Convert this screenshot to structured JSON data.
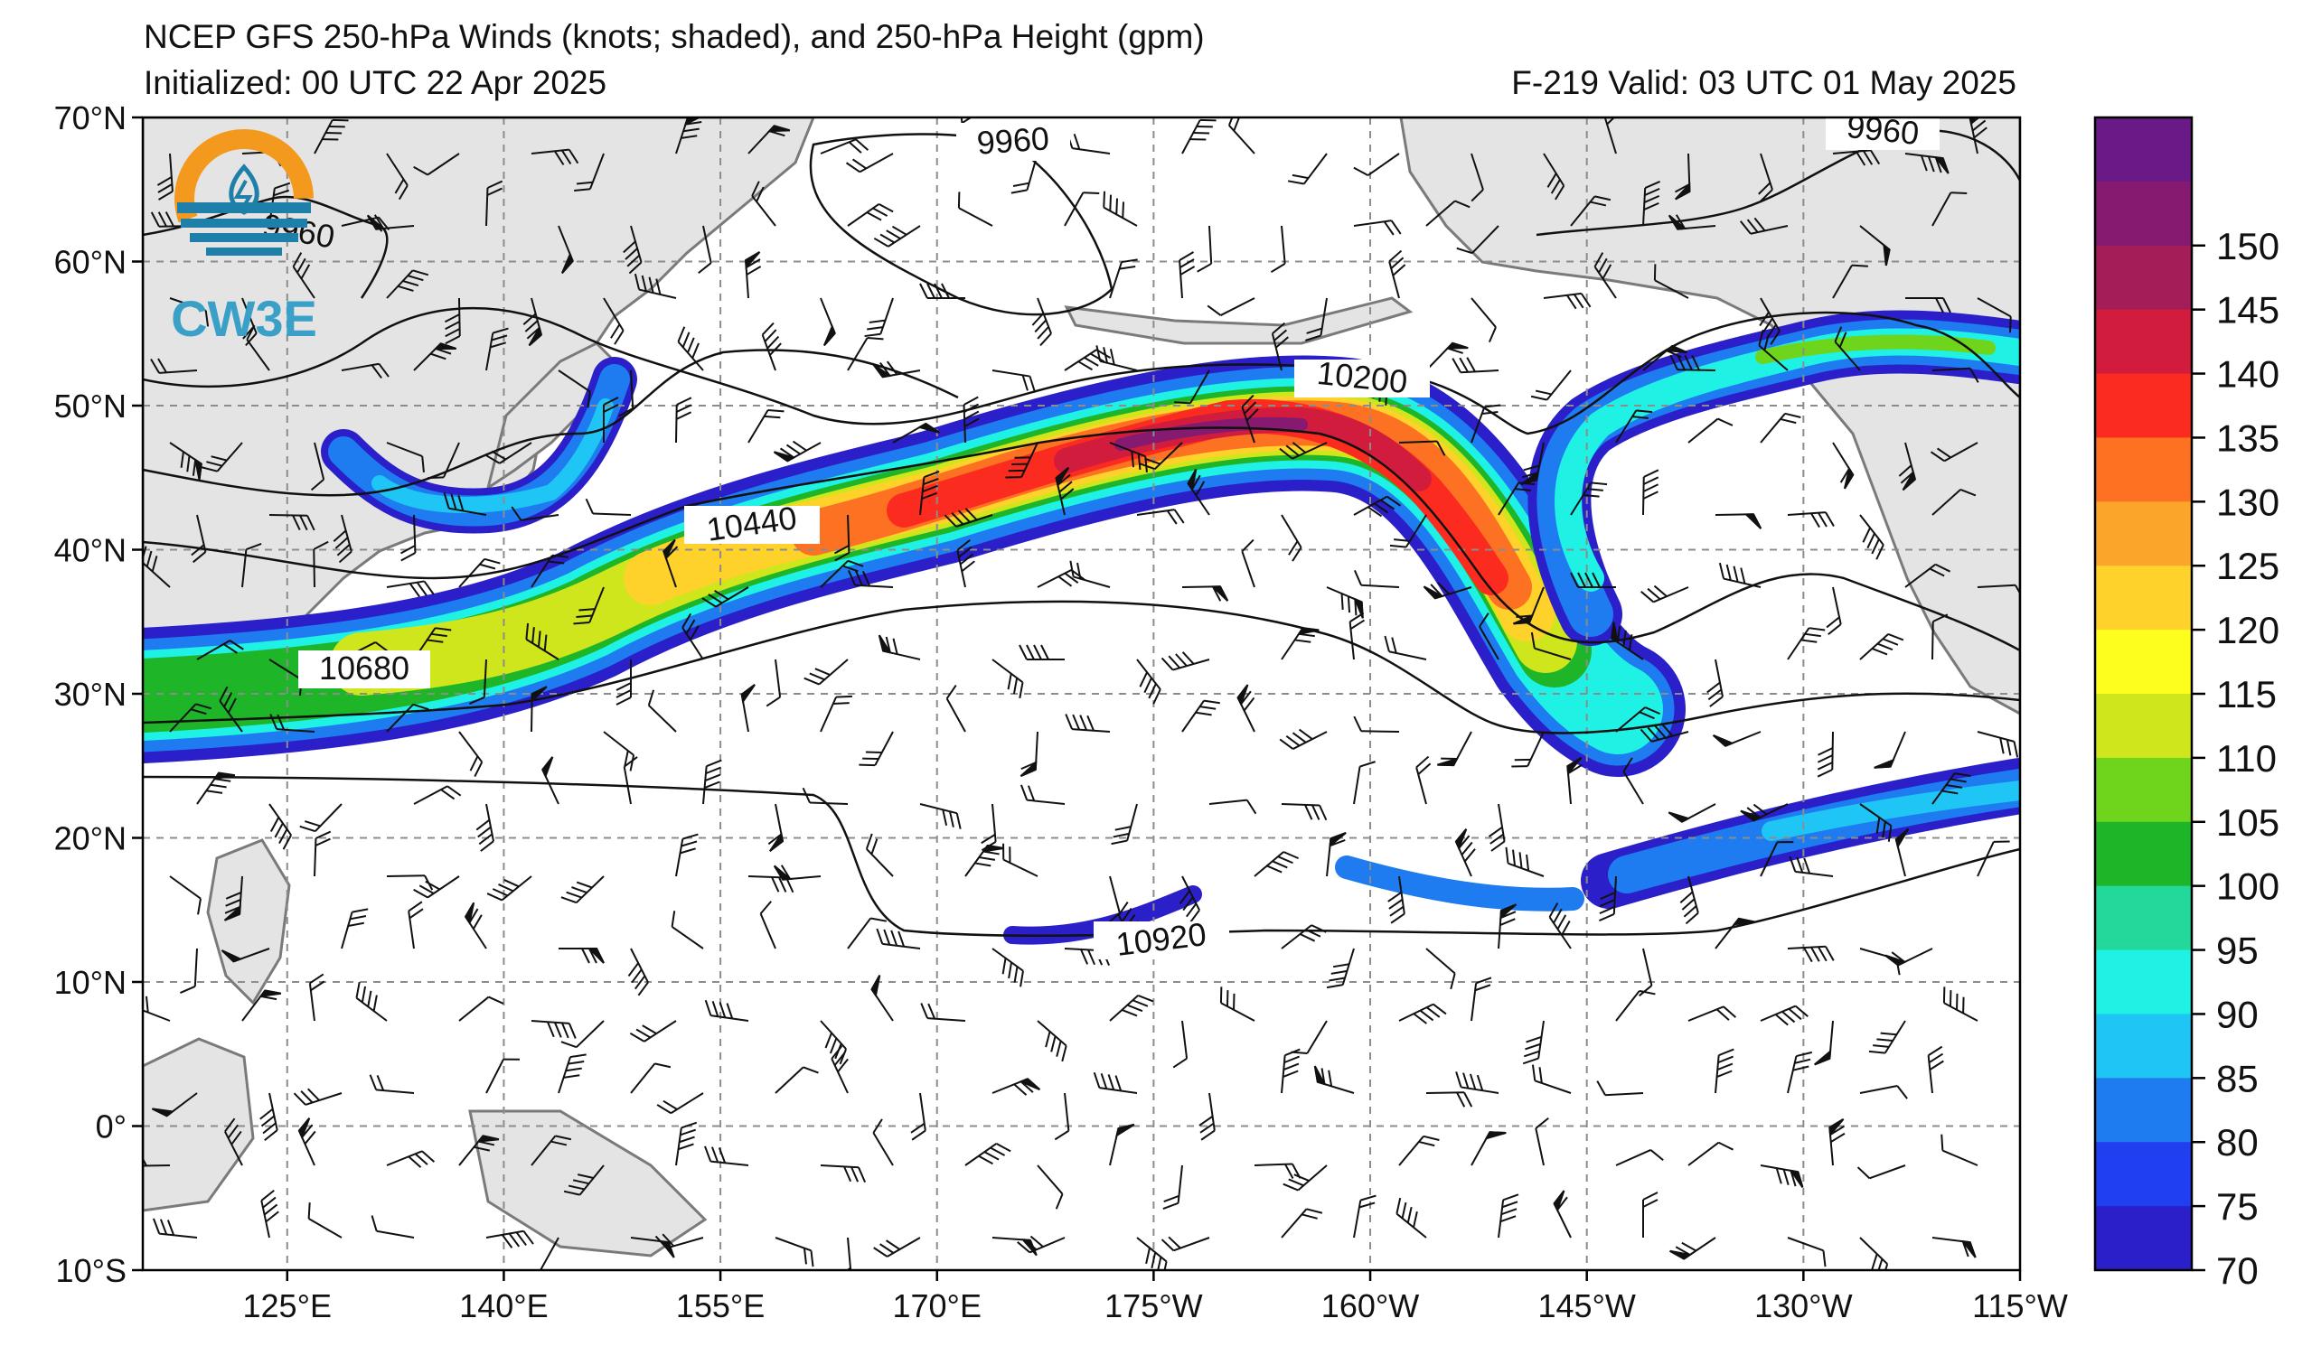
{
  "header": {
    "title": "NCEP GFS 250-hPa Winds (knots; shaded), and 250-hPa Height (gpm)",
    "initialized": "Initialized: 00 UTC 22 Apr 2025",
    "valid": "F-219  Valid: 03 UTC 01 May 2025"
  },
  "logo": {
    "text": "CW3E",
    "colors": {
      "ring": "#f39a1e",
      "base": "#1e7fa8"
    }
  },
  "map": {
    "lat_ticks": [
      "70°N",
      "60°N",
      "50°N",
      "40°N",
      "30°N",
      "20°N",
      "10°N",
      "0°",
      "10°S"
    ],
    "lon_ticks": [
      "125°E",
      "140°E",
      "155°E",
      "170°E",
      "175°W",
      "160°W",
      "145°W",
      "130°W",
      "115°W"
    ],
    "extent": {
      "lon": [
        115,
        245
      ],
      "lat": [
        -10,
        70
      ]
    },
    "land_color": "#e4e4e4",
    "contour_labels": [
      "9960",
      "9960",
      "10200",
      "10440",
      "10680",
      "10920",
      "9960"
    ]
  },
  "colorbar": {
    "ticks": [
      "70",
      "75",
      "80",
      "85",
      "90",
      "95",
      "100",
      "105",
      "110",
      "115",
      "120",
      "125",
      "130",
      "135",
      "140",
      "145",
      "150"
    ],
    "colors": [
      "#2a1fc9",
      "#1f3ff0",
      "#1e7cf0",
      "#1fc6f5",
      "#1ff2e4",
      "#23d89b",
      "#1fb529",
      "#6fd41c",
      "#cfe51c",
      "#fefe1d",
      "#fed22a",
      "#fca52b",
      "#fc7122",
      "#fc2b1f",
      "#d21c3d",
      "#a51d58",
      "#861a70",
      "#6a1a86"
    ]
  }
}
